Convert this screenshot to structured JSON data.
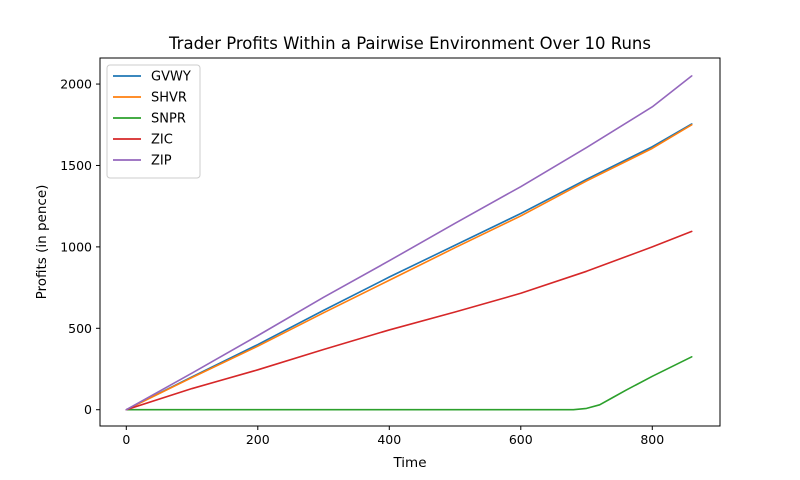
{
  "chart_data": {
    "type": "line",
    "title": "Trader Profits Within a Pairwise Environment Over 10 Runs",
    "xlabel": "Time",
    "ylabel": "Profits (in pence)",
    "xlim": [
      -40,
      903
    ],
    "ylim": [
      -100,
      2160
    ],
    "xticks": [
      0,
      200,
      400,
      600,
      800
    ],
    "yticks": [
      0,
      500,
      1000,
      1500,
      2000
    ],
    "grid": false,
    "legend_position": "upper-left",
    "series": [
      {
        "name": "GVWY",
        "color": "#1f77b4",
        "x": [
          0,
          100,
          200,
          300,
          400,
          500,
          600,
          700,
          800,
          860
        ],
        "y": [
          0,
          202,
          400,
          610,
          815,
          1010,
          1205,
          1415,
          1615,
          1755
        ]
      },
      {
        "name": "SHVR",
        "color": "#ff7f0e",
        "x": [
          0,
          100,
          200,
          300,
          400,
          500,
          600,
          700,
          800,
          860
        ],
        "y": [
          0,
          198,
          390,
          595,
          795,
          995,
          1190,
          1405,
          1605,
          1750
        ]
      },
      {
        "name": "SNPR",
        "color": "#2ca02c",
        "x": [
          0,
          200,
          400,
          600,
          680,
          700,
          720,
          740,
          760,
          800,
          860
        ],
        "y": [
          0,
          0,
          0,
          0,
          0,
          8,
          30,
          75,
          120,
          205,
          325
        ]
      },
      {
        "name": "ZIC",
        "color": "#d62728",
        "x": [
          0,
          100,
          200,
          300,
          400,
          500,
          600,
          700,
          800,
          860
        ],
        "y": [
          0,
          130,
          245,
          370,
          490,
          600,
          715,
          850,
          1000,
          1095
        ]
      },
      {
        "name": "ZIP",
        "color": "#9467bd",
        "x": [
          0,
          100,
          200,
          300,
          400,
          500,
          600,
          700,
          800,
          860
        ],
        "y": [
          0,
          225,
          455,
          690,
          915,
          1145,
          1370,
          1610,
          1860,
          2050
        ]
      }
    ]
  }
}
